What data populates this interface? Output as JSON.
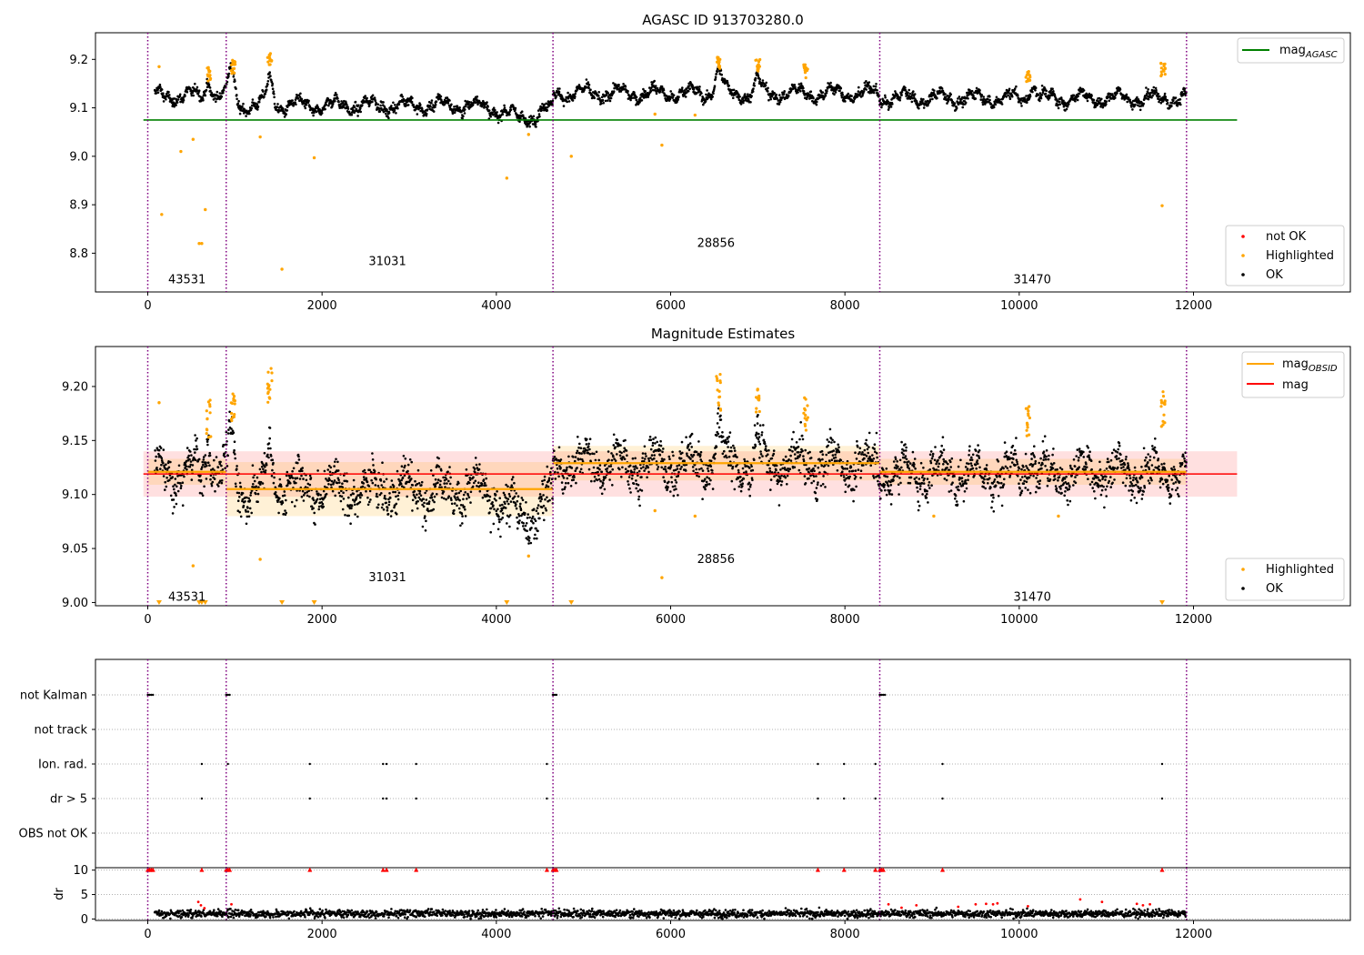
{
  "chart_data": [
    {
      "type": "scatter",
      "title": "AGASC ID 913703280.0",
      "xlabel": "",
      "ylabel": "",
      "xlim": [
        -600,
        13800
      ],
      "ylim": [
        8.72,
        9.255
      ],
      "x_ticks": [
        0,
        2000,
        4000,
        6000,
        8000,
        10000,
        12000
      ],
      "x_tick_labels": [
        "0",
        "2000",
        "4000",
        "6000",
        "8000",
        "10000",
        "12000"
      ],
      "y_ticks": [
        8.8,
        8.9,
        9.0,
        9.1,
        9.2
      ],
      "y_tick_labels": [
        "8.8",
        "8.9",
        "9.0",
        "9.1",
        "9.2"
      ],
      "obsid_boundaries": [
        0,
        900,
        4650,
        8400,
        11920
      ],
      "obsid_labels": [
        {
          "text": "43531",
          "x": 450,
          "y": 8.745
        },
        {
          "text": "31031",
          "x": 2750,
          "y": 8.783
        },
        {
          "text": "28856",
          "x": 6520,
          "y": 8.82
        },
        {
          "text": "31470",
          "x": 10150,
          "y": 8.745
        }
      ],
      "segments": [
        {
          "start": 80,
          "end": 900,
          "level": 9.125,
          "noise": 0.012,
          "bumps": [
            [
              700,
              9.16,
              40
            ]
          ]
        },
        {
          "start": 900,
          "end": 4650,
          "level": 9.105,
          "noise": 0.012,
          "bumps": [
            [
              950,
              9.175,
              60
            ],
            [
              1400,
              9.16,
              50
            ],
            [
              4300,
              9.08,
              300
            ]
          ]
        },
        {
          "start": 4650,
          "end": 8400,
          "level": 9.13,
          "noise": 0.012,
          "bumps": [
            [
              6550,
              9.175,
              60
            ],
            [
              7000,
              9.16,
              40
            ]
          ]
        },
        {
          "start": 8400,
          "end": 11920,
          "level": 9.12,
          "noise": 0.012,
          "bumps": [
            [
              10150,
              9.15,
              50
            ]
          ]
        }
      ],
      "series": [
        {
          "name": "mag_AGASC",
          "kind": "hline",
          "y": 9.075,
          "x_range": [
            -50,
            12500
          ],
          "color": "#008000"
        }
      ],
      "highlighted_points": {
        "x": [
          130,
          160,
          380,
          520,
          590,
          620,
          660,
          1290,
          1540,
          1910,
          4120,
          4370,
          4860,
          5900,
          11640,
          6280,
          5820
        ],
        "y": [
          9.185,
          8.88,
          9.01,
          9.035,
          8.82,
          8.82,
          8.89,
          9.04,
          8.767,
          8.997,
          8.955,
          9.045,
          9.0,
          9.023,
          8.898,
          9.085,
          9.087
        ]
      },
      "highlight_clusters": [
        [
          700,
          9.17
        ],
        [
          980,
          9.185
        ],
        [
          1400,
          9.2
        ],
        [
          6550,
          9.195
        ],
        [
          7000,
          9.185
        ],
        [
          7550,
          9.175
        ],
        [
          11650,
          9.18
        ],
        [
          10100,
          9.165
        ]
      ],
      "legend_top": {
        "entries": [
          "mag_AGASC"
        ],
        "main": "mag",
        "sub": "AGASC",
        "location": "upper right"
      },
      "legend_bottom": {
        "entries": [
          "not OK",
          "Highlighted",
          "OK"
        ],
        "location": "lower right"
      },
      "colors": {
        "ok": "#000000",
        "highlighted": "#ffa500",
        "not_ok": "#ff0000",
        "agasc": "#008000",
        "boundary": "#800080"
      }
    },
    {
      "type": "scatter",
      "title": "Magnitude Estimates",
      "xlabel": "",
      "ylabel": "",
      "xlim": [
        -600,
        13800
      ],
      "ylim": [
        8.997,
        9.237
      ],
      "x_ticks": [
        0,
        2000,
        4000,
        6000,
        8000,
        10000,
        12000
      ],
      "x_tick_labels": [
        "0",
        "2000",
        "4000",
        "6000",
        "8000",
        "10000",
        "12000"
      ],
      "y_ticks": [
        9.0,
        9.05,
        9.1,
        9.15,
        9.2
      ],
      "y_tick_labels": [
        "9.00",
        "9.05",
        "9.10",
        "9.15",
        "9.20"
      ],
      "obsid_labels": [
        {
          "text": "43531",
          "x": 450,
          "y": 9.005
        },
        {
          "text": "31031",
          "x": 2750,
          "y": 9.023
        },
        {
          "text": "28856",
          "x": 6520,
          "y": 9.04
        },
        {
          "text": "31470",
          "x": 10150,
          "y": 9.005
        }
      ],
      "series": [
        {
          "name": "mag",
          "kind": "hline",
          "y": 9.119,
          "x_range": [
            -50,
            12500
          ],
          "band": [
            9.098,
            9.14
          ],
          "color": "#ff0000"
        },
        {
          "name": "mag_OBSID",
          "kind": "steps",
          "color": "#ffa500",
          "steps": [
            {
              "x0": 0,
              "x1": 900,
              "y": 9.121,
              "band": [
                9.109,
                9.133
              ]
            },
            {
              "x0": 900,
              "x1": 4650,
              "y": 9.105,
              "band": [
                9.08,
                9.13
              ]
            },
            {
              "x0": 4650,
              "x1": 8400,
              "y": 9.129,
              "band": [
                9.113,
                9.145
              ]
            },
            {
              "x0": 8400,
              "x1": 11920,
              "y": 9.121,
              "band": [
                9.109,
                9.133
              ]
            }
          ]
        }
      ],
      "highlighted_points": {
        "x": [
          130,
          520,
          1290,
          5900,
          6280,
          4370,
          5820,
          9020,
          10450,
          11640
        ],
        "y": [
          9.185,
          9.034,
          9.04,
          9.023,
          9.08,
          9.043,
          9.085,
          9.08,
          9.08,
          9.185
        ]
      },
      "highlight_clusters": [
        [
          700,
          9.17
        ],
        [
          980,
          9.185
        ],
        [
          1400,
          9.2
        ],
        [
          6550,
          9.195
        ],
        [
          7000,
          9.185
        ],
        [
          7550,
          9.175
        ],
        [
          11650,
          9.18
        ],
        [
          10100,
          9.165
        ]
      ],
      "below_range_x": [
        130,
        590,
        620,
        660,
        1540,
        1910,
        4120,
        4860,
        11640
      ],
      "legend_top": {
        "entries": [
          "mag_OBSID",
          "mag"
        ],
        "main": "mag",
        "sub": "OBSID",
        "second": "mag",
        "location": "upper right"
      },
      "legend_bottom": {
        "entries": [
          "Highlighted",
          "OK"
        ],
        "location": "lower right"
      }
    },
    {
      "type": "scatter",
      "title": "",
      "xlabel": "",
      "ylabel": "",
      "xlim": [
        -600,
        13800
      ],
      "flag_rows": [
        "not Kalman",
        "not track",
        "Ion. rad.",
        "dr > 5",
        "OBS not OK"
      ],
      "flag_events": {
        "not Kalman": [
          0,
          20,
          40,
          60,
          900,
          920,
          940,
          4650,
          4670,
          4690,
          8400,
          8420,
          8440,
          8460
        ],
        "not track": [],
        "Ion. rad.": [
          620,
          920,
          1860,
          2700,
          2740,
          3080,
          4580,
          7690,
          7990,
          8350,
          9120,
          11640
        ],
        "dr > 5": [
          620,
          1860,
          2700,
          2740,
          3080,
          4580,
          7690,
          7990,
          8350,
          9120,
          11640
        ],
        "OBS not OK": []
      }
    },
    {
      "type": "scatter",
      "title": "",
      "xlabel": "",
      "ylabel": "dr",
      "xlim": [
        -600,
        13800
      ],
      "ylim": [
        -0.3,
        10.5
      ],
      "y_ticks": [
        0,
        5,
        10
      ],
      "y_tick_labels": [
        "0",
        "5",
        "10"
      ],
      "x_ticks": [
        0,
        2000,
        4000,
        6000,
        8000,
        10000,
        12000
      ],
      "x_tick_labels": [
        "0",
        "2000",
        "4000",
        "6000",
        "8000",
        "10000",
        "12000"
      ],
      "capped_x": [
        0,
        20,
        40,
        60,
        620,
        900,
        920,
        940,
        1860,
        2700,
        2740,
        3080,
        4580,
        4650,
        4670,
        4690,
        7690,
        7990,
        8350,
        8400,
        8420,
        8440,
        9120,
        11640
      ],
      "red_scatter": {
        "x": [
          580,
          610,
          650,
          960,
          8500,
          8650,
          8820,
          9300,
          9500,
          9620,
          9700,
          9750,
          10100,
          10700,
          10950,
          11350,
          11420,
          11500
        ],
        "y": [
          3.5,
          2.8,
          2.2,
          3.0,
          3.0,
          2.3,
          2.8,
          2.5,
          3.0,
          3.1,
          3.0,
          3.2,
          2.6,
          4.0,
          3.5,
          3.1,
          2.8,
          3.0
        ]
      }
    }
  ]
}
